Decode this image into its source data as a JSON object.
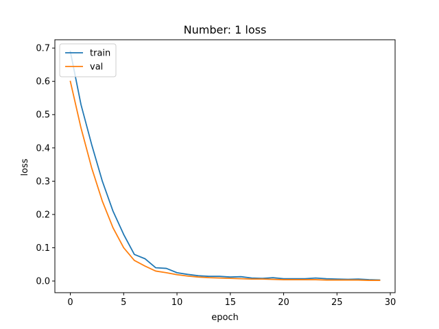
{
  "chart_data": {
    "type": "line",
    "title": "Number: 1 loss",
    "xlabel": "epoch",
    "ylabel": "loss",
    "xlim": [
      -1.45,
      30.45
    ],
    "ylim": [
      -0.035,
      0.725
    ],
    "xticks": [
      0,
      5,
      10,
      15,
      20,
      25,
      30
    ],
    "yticks": [
      0.0,
      0.1,
      0.2,
      0.3,
      0.4,
      0.5,
      0.6,
      0.7
    ],
    "ytick_labels": [
      "0.0",
      "0.1",
      "0.2",
      "0.3",
      "0.4",
      "0.5",
      "0.6",
      "0.7"
    ],
    "grid": false,
    "legend_position": "top-left",
    "x": [
      0,
      1,
      2,
      3,
      4,
      5,
      6,
      7,
      8,
      9,
      10,
      11,
      12,
      13,
      14,
      15,
      16,
      17,
      18,
      19,
      20,
      21,
      22,
      23,
      24,
      25,
      26,
      27,
      28,
      29
    ],
    "series": [
      {
        "name": "train",
        "color": "#1f77b4",
        "values": [
          0.69,
          0.53,
          0.41,
          0.3,
          0.21,
          0.14,
          0.08,
          0.067,
          0.04,
          0.038,
          0.025,
          0.02,
          0.016,
          0.014,
          0.014,
          0.012,
          0.013,
          0.009,
          0.008,
          0.01,
          0.007,
          0.007,
          0.007,
          0.009,
          0.007,
          0.006,
          0.005,
          0.006,
          0.004,
          0.003
        ]
      },
      {
        "name": "val",
        "color": "#ff7f0e",
        "values": [
          0.6,
          0.46,
          0.34,
          0.24,
          0.16,
          0.1,
          0.062,
          0.045,
          0.03,
          0.025,
          0.019,
          0.015,
          0.012,
          0.01,
          0.009,
          0.008,
          0.007,
          0.006,
          0.006,
          0.005,
          0.004,
          0.004,
          0.004,
          0.004,
          0.003,
          0.003,
          0.003,
          0.003,
          0.002,
          0.002
        ]
      }
    ]
  }
}
